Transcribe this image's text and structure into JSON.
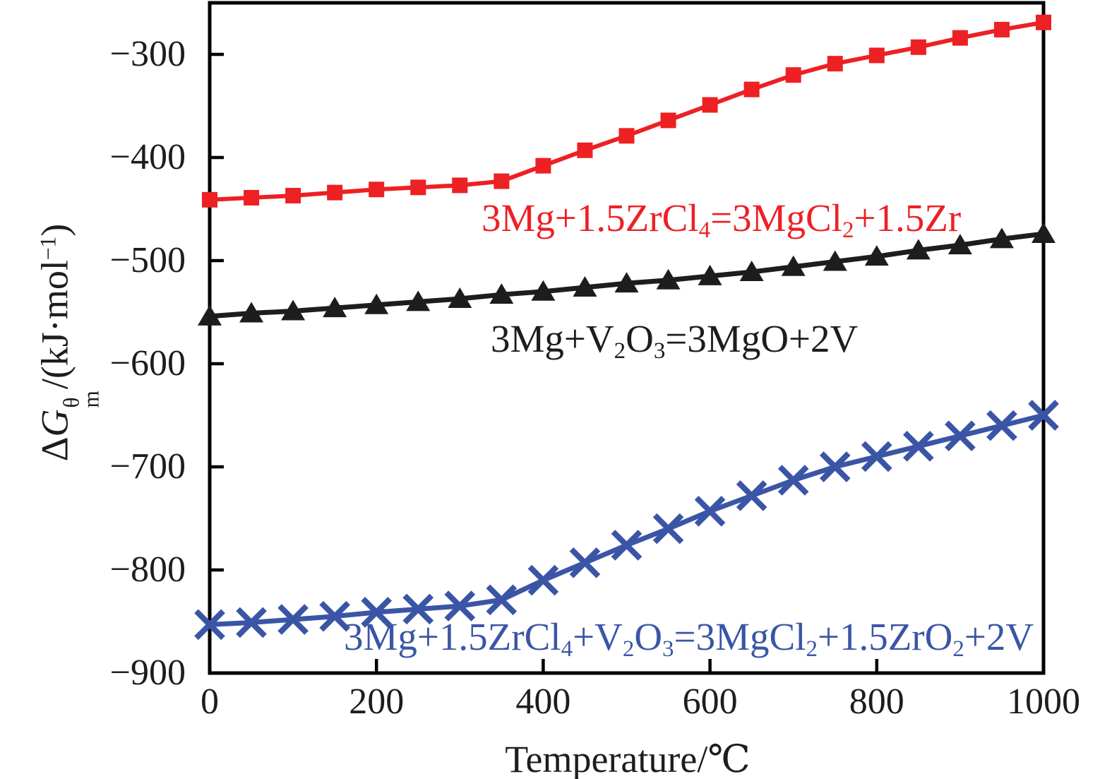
{
  "figure": {
    "background": "#ffffff",
    "frame_color": "#000000"
  },
  "chart_data": {
    "type": "line",
    "title": "",
    "xlabel": "Temperature/℃",
    "ylabel": "ΔG_m^θ/(kJ·mol⁻¹)",
    "xlim": [
      0,
      1000
    ],
    "ylim": [
      -900,
      -250
    ],
    "x_ticks": [
      0,
      200,
      400,
      600,
      800,
      1000
    ],
    "y_ticks": [
      -300,
      -400,
      -500,
      -600,
      -700,
      -800,
      -900
    ],
    "grid": false,
    "legend_position": "inline-labels",
    "x": [
      0,
      50,
      100,
      150,
      200,
      250,
      300,
      350,
      400,
      450,
      500,
      550,
      600,
      650,
      700,
      750,
      800,
      850,
      900,
      950,
      1000
    ],
    "series": [
      {
        "name": "3Mg+1.5ZrCl₄=3MgCl₂+1.5Zr",
        "color": "#ed2024",
        "marker": "square",
        "line_width": 6,
        "values": [
          -441,
          -439,
          -437,
          -434,
          -431,
          -429,
          -427,
          -423,
          -408,
          -393,
          -379,
          -364,
          -349,
          -334,
          -320,
          -309,
          -301,
          -293,
          -284,
          -276,
          -269
        ]
      },
      {
        "name": "3Mg+V₂O₃=3MgO+2V",
        "color": "#1f1c1d",
        "marker": "triangle",
        "line_width": 7,
        "values": [
          -554,
          -551,
          -549,
          -546,
          -543,
          -540,
          -537,
          -533,
          -530,
          -526,
          -522,
          -519,
          -515,
          -511,
          -506,
          -501,
          -496,
          -490,
          -485,
          -479,
          -474
        ]
      },
      {
        "name": "3Mg+1.5ZrCl₄+V₂O₃=3MgCl₂+1.5ZrO₂+2V",
        "color": "#3b55a6",
        "marker": "x",
        "line_width": 7,
        "values": [
          -853,
          -851,
          -848,
          -845,
          -841,
          -838,
          -835,
          -829,
          -810,
          -793,
          -776,
          -760,
          -743,
          -728,
          -713,
          -700,
          -690,
          -680,
          -670,
          -660,
          -650
        ]
      }
    ]
  },
  "labels": {
    "y_ticks": [
      "−300",
      "−400",
      "−500",
      "−600",
      "−700",
      "−800",
      "−900"
    ],
    "x_ticks": [
      "0",
      "200",
      "400",
      "600",
      "800",
      "1000"
    ],
    "x_title": "Temperature/℃",
    "y_title": {
      "delta": "Δ",
      "symbol": "G",
      "sup": "θ",
      "sub": "m",
      "mid": "/(kJ·mol",
      "exp": "−1",
      "end": ")"
    },
    "series": [
      {
        "segments": [
          {
            "t": "3Mg+1.5ZrCl"
          },
          {
            "t": "4",
            "sub": true
          },
          {
            "t": "=3MgCl"
          },
          {
            "t": "2",
            "sub": true
          },
          {
            "t": "+1.5Zr"
          }
        ]
      },
      {
        "segments": [
          {
            "t": "3Mg+V"
          },
          {
            "t": "2",
            "sub": true
          },
          {
            "t": "O"
          },
          {
            "t": "3",
            "sub": true
          },
          {
            "t": "=3MgO+2V"
          }
        ]
      },
      {
        "segments": [
          {
            "t": "3Mg+1.5ZrCl"
          },
          {
            "t": "4",
            "sub": true
          },
          {
            "t": "+V"
          },
          {
            "t": "2",
            "sub": true
          },
          {
            "t": "O"
          },
          {
            "t": "3",
            "sub": true
          },
          {
            "t": "=3MgCl"
          },
          {
            "t": "2",
            "sub": true
          },
          {
            "t": "+1.5ZrO"
          },
          {
            "t": "2",
            "sub": true
          },
          {
            "t": "+2V"
          }
        ]
      }
    ]
  }
}
